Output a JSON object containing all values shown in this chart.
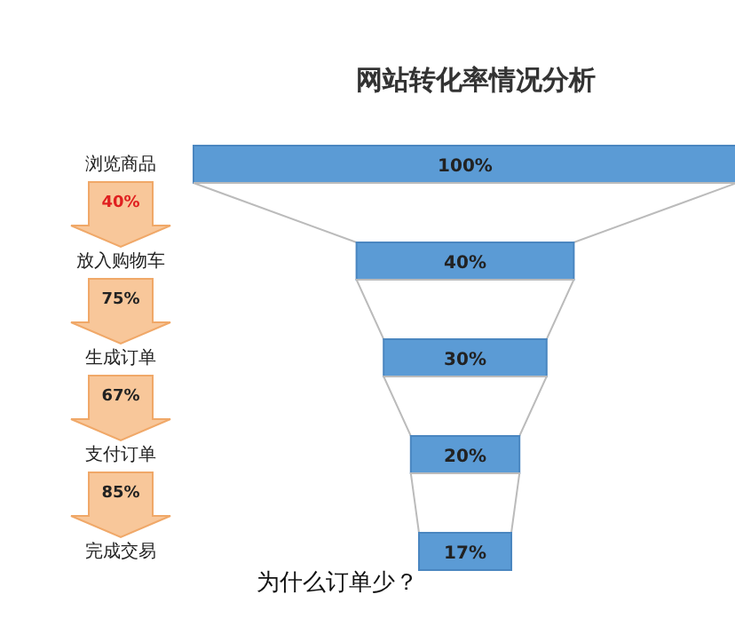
{
  "chart_data": {
    "type": "other",
    "title": "网站转化率情况分析",
    "categories": [
      "浏览商品",
      "放入购物车",
      "生成订单",
      "支付订单",
      "完成交易"
    ],
    "values": [
      100,
      40,
      30,
      20,
      17
    ],
    "value_labels": [
      "100%",
      "40%",
      "30%",
      "20%",
      "17%"
    ],
    "color": "#5b9bd5",
    "annotations": [
      "40%",
      "75%",
      "67%",
      "85%",
      "为什么订单少？"
    ]
  }
}
